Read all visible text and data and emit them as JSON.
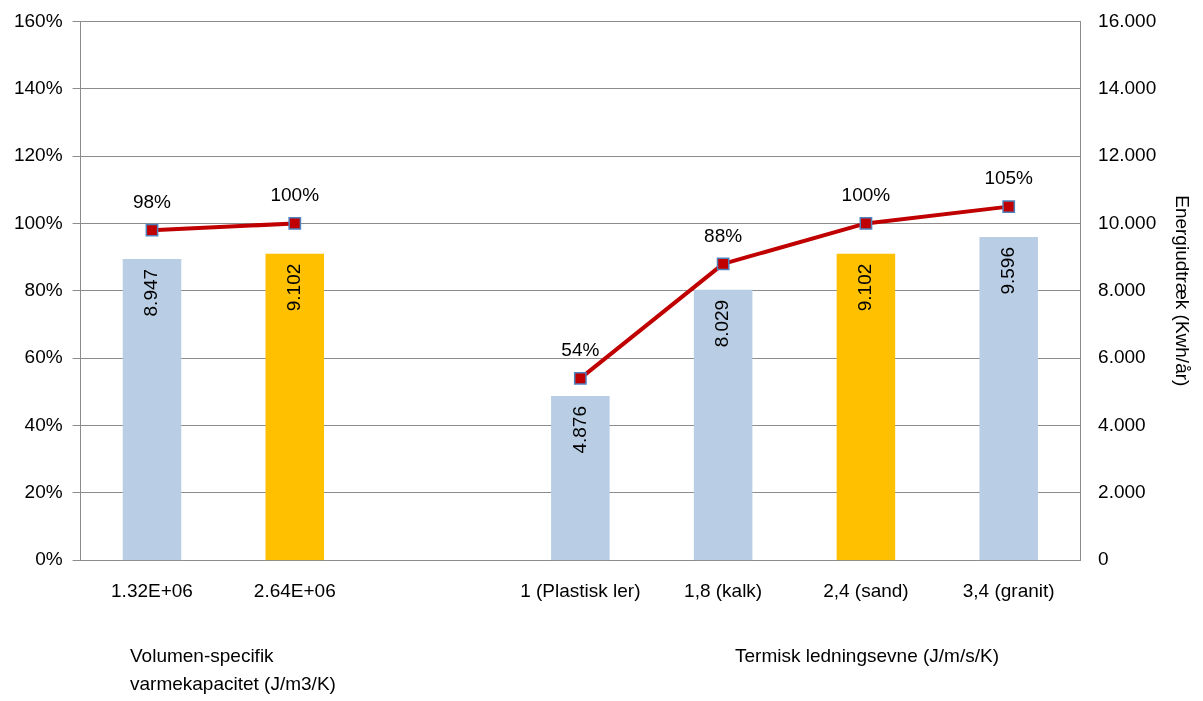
{
  "chart_data": {
    "type": "bar",
    "categories": [
      "1.32E+06",
      "2.64E+06",
      null,
      "1 (Plastisk ler)",
      "1,8 (kalk)",
      "2,4 (sand)",
      "3,4 (granit)"
    ],
    "series": [
      {
        "axis": "y2",
        "colors": [
          "#b9cde5",
          "#ffc000",
          null,
          "#b9cde5",
          "#b9cde5",
          "#ffc000",
          "#b9cde5"
        ],
        "values": [
          8947,
          9102,
          null,
          4876,
          8029,
          9102,
          9596
        ],
        "value_labels": [
          "8.947",
          "9.102",
          null,
          "4.876",
          "8.029",
          "9.102",
          "9.596"
        ]
      },
      {
        "type": "line",
        "axis": "y",
        "color": "#c00000",
        "marker": "square",
        "line_style": "solid",
        "values": [
          98,
          100,
          null,
          54,
          88,
          100,
          105
        ],
        "value_labels": [
          "98%",
          "100%",
          null,
          "54%",
          "88%",
          "100%",
          "105%"
        ]
      }
    ],
    "ylim": [
      0,
      160
    ],
    "yticks": [
      {
        "value": 0,
        "label": "0%"
      },
      {
        "value": 20,
        "label": "20%"
      },
      {
        "value": 40,
        "label": "40%"
      },
      {
        "value": 60,
        "label": "60%"
      },
      {
        "value": 80,
        "label": "80%"
      },
      {
        "value": 100,
        "label": "100%"
      },
      {
        "value": 120,
        "label": "120%"
      },
      {
        "value": 140,
        "label": "140%"
      },
      {
        "value": 160,
        "label": "160%"
      }
    ],
    "y2lim": [
      0,
      16000
    ],
    "y2ticks": [
      {
        "value": 0,
        "label": "0"
      },
      {
        "value": 2000,
        "label": "2.000"
      },
      {
        "value": 4000,
        "label": "4.000"
      },
      {
        "value": 6000,
        "label": "6.000"
      },
      {
        "value": 8000,
        "label": "8.000"
      },
      {
        "value": 10000,
        "label": "10.000"
      },
      {
        "value": 12000,
        "label": "12.000"
      },
      {
        "value": 14000,
        "label": "14.000"
      },
      {
        "value": 16000,
        "label": "16.000"
      }
    ],
    "y2label": "Energiudtræk (Kwh/år)",
    "grid": "y",
    "legend": false,
    "annotations": [
      "Volumen-specifik varmekapacitet (J/m3/K)",
      "Termisk ledningsevne (J/m/s/K)"
    ]
  }
}
